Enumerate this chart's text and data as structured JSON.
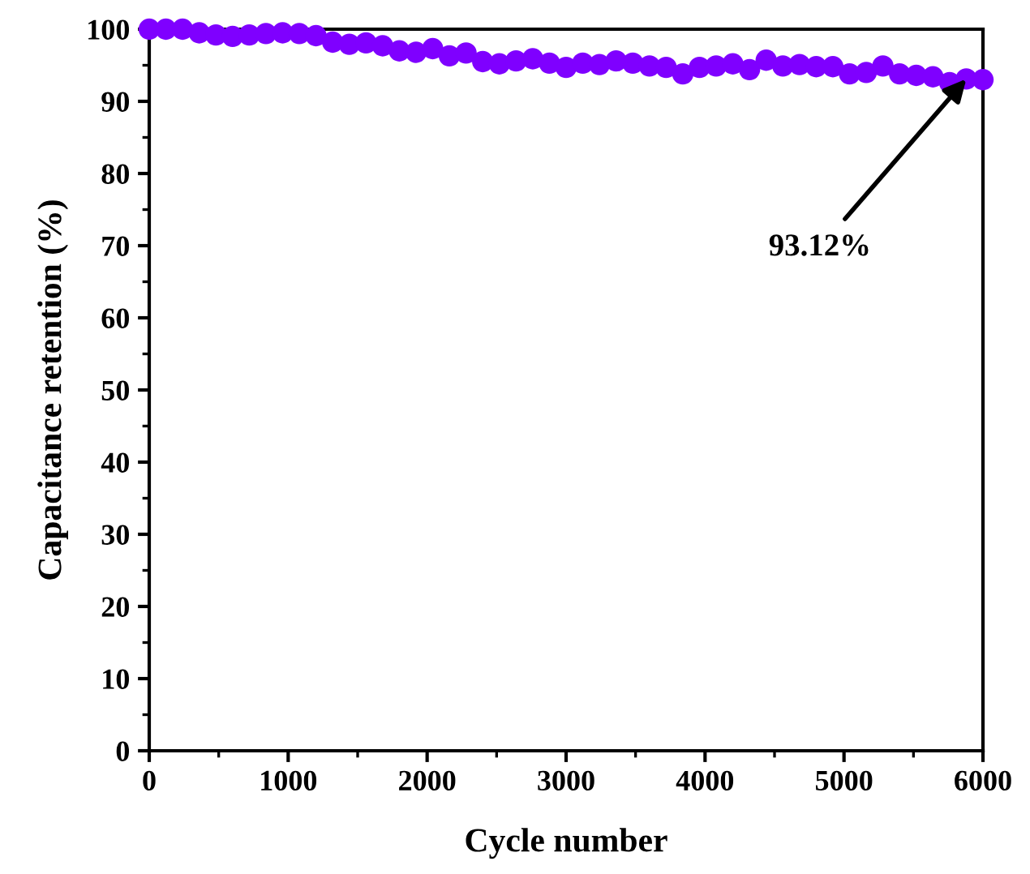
{
  "chart_data": {
    "type": "scatter",
    "xlabel": "Cycle number",
    "ylabel": "Capacitance retention (%)",
    "x": [
      0,
      120,
      240,
      360,
      480,
      600,
      720,
      840,
      960,
      1080,
      1200,
      1320,
      1440,
      1560,
      1680,
      1800,
      1920,
      2040,
      2160,
      2280,
      2400,
      2520,
      2640,
      2760,
      2880,
      3000,
      3120,
      3240,
      3360,
      3480,
      3600,
      3720,
      3840,
      3960,
      4080,
      4200,
      4320,
      4440,
      4560,
      4680,
      4800,
      4920,
      5040,
      5160,
      5280,
      5400,
      5520,
      5640,
      5760,
      5880,
      6000
    ],
    "series": [
      {
        "color": "#7f00ff",
        "values": [
          100,
          100,
          100,
          99.5,
          99.2,
          99.0,
          99.2,
          99.4,
          99.5,
          99.4,
          99.1,
          98.2,
          97.9,
          98.1,
          97.7,
          97.0,
          96.8,
          97.3,
          96.3,
          96.7,
          95.5,
          95.2,
          95.6,
          95.9,
          95.3,
          94.7,
          95.3,
          95.1,
          95.6,
          95.3,
          94.9,
          94.7,
          93.8,
          94.7,
          94.9,
          95.2,
          94.4,
          95.7,
          94.9,
          95.1,
          94.8,
          94.8,
          93.8,
          94.0,
          94.9,
          93.8,
          93.6,
          93.4,
          92.6,
          93.1,
          93.0
        ]
      }
    ],
    "marker": "circle",
    "xlim": [
      0,
      6000
    ],
    "ylim": [
      0,
      100
    ],
    "xticks": [
      0,
      1000,
      2000,
      3000,
      4000,
      5000,
      6000
    ],
    "yticks": [
      0,
      10,
      20,
      30,
      40,
      50,
      60,
      70,
      80,
      90,
      100
    ],
    "annotations": [
      {
        "text": "93.12%",
        "x": 5880,
        "y": 93.1
      }
    ],
    "grid": false,
    "legend": false
  }
}
